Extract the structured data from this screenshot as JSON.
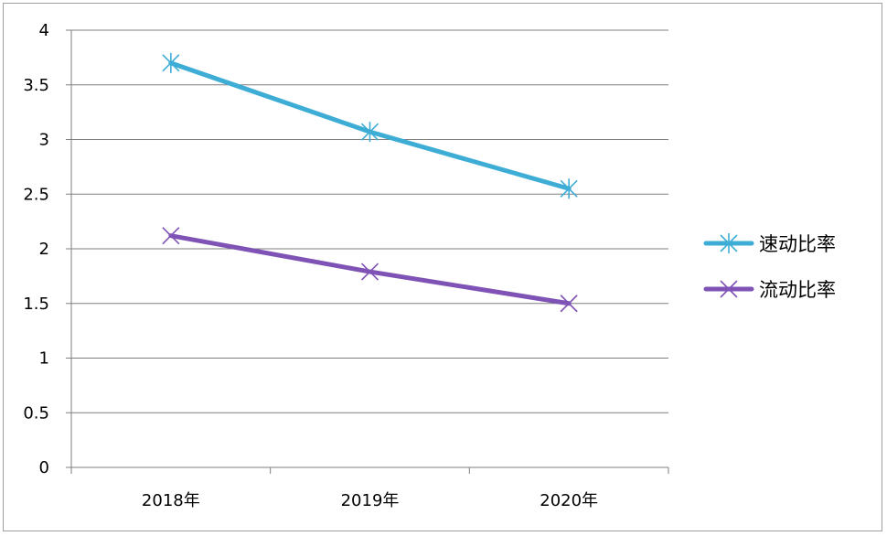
{
  "chart_data": {
    "type": "line",
    "categories": [
      "2018年",
      "2019年",
      "2020年"
    ],
    "y_ticks": [
      "0",
      "0.5",
      "1",
      "1.5",
      "2",
      "2.5",
      "3",
      "3.5",
      "4"
    ],
    "ylim": [
      0,
      4
    ],
    "grid": true,
    "legend_position": "right",
    "series": [
      {
        "name": "速动比率",
        "values": [
          3.7,
          3.07,
          2.55
        ],
        "color": "#3eadd6",
        "marker": "asterisk"
      },
      {
        "name": "流动比率",
        "values": [
          2.12,
          1.79,
          1.5
        ],
        "color": "#7f53b5",
        "marker": "x"
      }
    ]
  }
}
